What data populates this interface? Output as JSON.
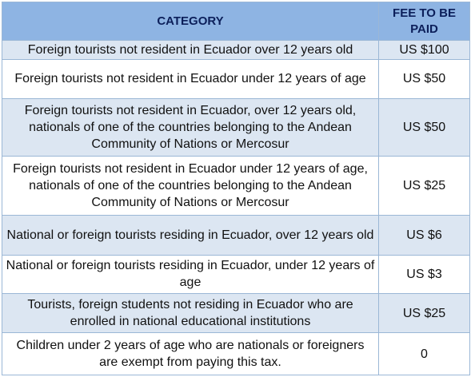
{
  "table": {
    "headers": {
      "category": "CATEGORY",
      "fee": "FEE TO BE PAID"
    },
    "rows": [
      {
        "category": "Foreign tourists not resident in Ecuador over 12 years old",
        "fee": "US $100"
      },
      {
        "category": "Foreign tourists not resident in Ecuador under 12 years of age",
        "fee": "US $50"
      },
      {
        "category": "Foreign tourists not resident in Ecuador, over 12 years old, nationals of one of the countries belonging to the Andean Community of Nations or Mercosur",
        "fee": "US $50"
      },
      {
        "category": "Foreign tourists not resident in Ecuador under 12 years of age, nationals of one of the countries belonging to the Andean Community of Nations or Mercosur",
        "fee": "US $25"
      },
      {
        "category": "National or foreign tourists residing in Ecuador, over 12 years old",
        "fee": "US $6"
      },
      {
        "category": "National or foreign tourists residing in Ecuador, under 12 years of age",
        "fee": "US $3"
      },
      {
        "category": "Tourists, foreign students not residing in Ecuador who are enrolled in national educational institutions",
        "fee": "US $25"
      },
      {
        "category": "Children under 2 years of age who are nationals or foreigners are exempt from paying this tax.",
        "fee": "0"
      }
    ]
  },
  "colors": {
    "header_bg": "#8eb4e3",
    "stripe_bg": "#dce6f2",
    "border": "#9bb7d6"
  }
}
